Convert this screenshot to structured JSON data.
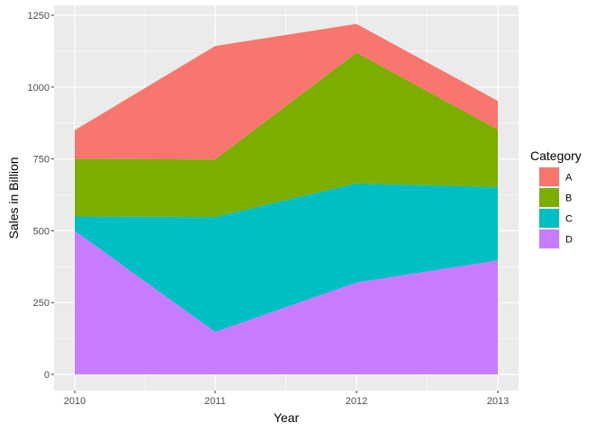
{
  "chart_data": {
    "type": "area",
    "stacked": true,
    "x": [
      2010,
      2011,
      2012,
      2013
    ],
    "xlabel": "Year",
    "ylabel": "Sales in Billion",
    "ylim": [
      0,
      1250
    ],
    "yticks": [
      0,
      250,
      500,
      750,
      1000,
      1250
    ],
    "xticks": [
      2010,
      2011,
      2012,
      2013
    ],
    "grid": true,
    "legend": {
      "title": "Category",
      "placement": "right"
    },
    "series": [
      {
        "name": "A",
        "color": "#F8766D",
        "values": [
          100,
          395,
          100,
          100
        ]
      },
      {
        "name": "B",
        "color": "#7CAE00",
        "values": [
          200,
          200,
          455,
          200
        ]
      },
      {
        "name": "C",
        "color": "#00BFC4",
        "values": [
          50,
          400,
          345,
          255
        ]
      },
      {
        "name": "D",
        "color": "#C77CFF",
        "values": [
          500,
          148,
          320,
          397
        ]
      }
    ],
    "stack_order_bottom_to_top": [
      "D",
      "C",
      "B",
      "A"
    ]
  }
}
